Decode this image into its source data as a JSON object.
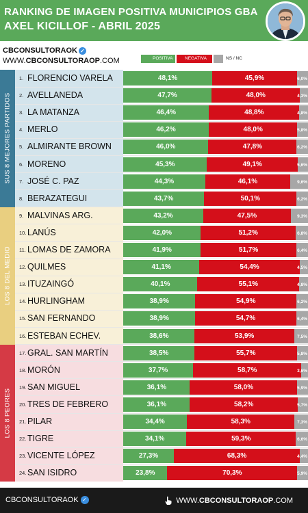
{
  "header": {
    "title_line1": "RANKING DE IMAGEN POSITIVA MUNICIPIOS GBA",
    "title_line2": "AXEL KICILLOF - ABRIL 2025"
  },
  "brand": {
    "handle": "CBCONSULTORAOK",
    "site_prefix": "WWW.",
    "site_main": "CBCONSULTORAOP",
    "site_suffix": ".COM"
  },
  "footer": {
    "handle": "CBCONSULTORAOK",
    "site_prefix": "WWW.",
    "site_main": "CBCONSULTORAOP",
    "site_suffix": ".COM"
  },
  "colors": {
    "positive": "#5aa95a",
    "negative": "#d40f1a",
    "nsnc": "#a7a7a7",
    "group_top": "#3b7a96",
    "group_mid": "#e9cf80",
    "group_low": "#d53a45",
    "bg_top": "#d3e4ec",
    "bg_mid": "#f8f0d8",
    "bg_low": "#f7dde0"
  },
  "chart_data": {
    "type": "bar",
    "stacked": true,
    "orientation": "horizontal",
    "legend": [
      "POSITIVA",
      "NEGATIVA",
      "NS / NC"
    ],
    "groups": [
      {
        "label": "SUS 8 MEJORES PARTIDOS",
        "start": 0,
        "end": 8
      },
      {
        "label": "LOS 8 DEL MEDIO",
        "start": 8,
        "end": 16
      },
      {
        "label": "LOS 8 PEORES",
        "start": 16,
        "end": 24
      }
    ],
    "categories": [
      "FLORENCIO VARELA",
      "AVELLANEDA",
      "LA MATANZA",
      "MERLO",
      "ALMIRANTE BROWN",
      "MORENO",
      "JOSÉ C. PAZ",
      "BERAZATEGUI",
      "MALVINAS ARG.",
      "LANÚS",
      "LOMAS DE ZAMORA",
      "QUILMES",
      "ITUZAINGÓ",
      "HURLINGHAM",
      "SAN FERNANDO",
      "ESTEBAN ECHEV.",
      "GRAL. SAN MARTÍN",
      "MORÓN",
      "SAN MIGUEL",
      "TRES DE FEBRERO",
      "PILAR",
      "TIGRE",
      "VICENTE LÓPEZ",
      "SAN ISIDRO"
    ],
    "series": [
      {
        "name": "POSITIVA",
        "values": [
          48.1,
          47.7,
          46.4,
          46.2,
          46.0,
          45.3,
          44.3,
          43.7,
          43.2,
          42.0,
          41.9,
          41.1,
          40.1,
          38.9,
          38.9,
          38.6,
          38.5,
          37.7,
          36.1,
          36.1,
          34.4,
          34.1,
          27.3,
          23.8
        ],
        "labels": [
          "48,1%",
          "47,7%",
          "46,4%",
          "46,2%",
          "46,0%",
          "45,3%",
          "44,3%",
          "43,7%",
          "43,2%",
          "42,0%",
          "41,9%",
          "41,1%",
          "40,1%",
          "38,9%",
          "38,9%",
          "38,6%",
          "38,5%",
          "37,7%",
          "36,1%",
          "36,1%",
          "34,4%",
          "34,1%",
          "27,3%",
          "23,8%"
        ]
      },
      {
        "name": "NEGATIVA",
        "values": [
          45.9,
          48.0,
          48.8,
          48.0,
          47.8,
          49.1,
          46.1,
          50.1,
          47.5,
          51.2,
          51.7,
          54.4,
          55.1,
          54.9,
          54.7,
          53.9,
          55.7,
          58.7,
          58.0,
          58.2,
          58.3,
          59.3,
          68.3,
          70.3
        ],
        "labels": [
          "45,9%",
          "48,0%",
          "48,8%",
          "48,0%",
          "47,8%",
          "49,1%",
          "46,1%",
          "50,1%",
          "47,5%",
          "51,2%",
          "51,7%",
          "54,4%",
          "55,1%",
          "54,9%",
          "54,7%",
          "53,9%",
          "55,7%",
          "58,7%",
          "58,0%",
          "58,2%",
          "58,3%",
          "59,3%",
          "68,3%",
          "70,3%"
        ]
      },
      {
        "name": "NS / NC",
        "values": [
          6.0,
          4.3,
          4.8,
          5.8,
          6.2,
          5.6,
          9.6,
          6.2,
          9.3,
          6.8,
          6.4,
          4.5,
          4.8,
          6.2,
          6.4,
          7.5,
          5.8,
          3.6,
          5.9,
          5.7,
          7.3,
          6.6,
          4.4,
          5.9
        ],
        "labels": [
          "6,0%",
          "4,3%",
          "4,8%",
          "5,8%",
          "6,2%",
          "5,6%",
          "9,6%",
          "6,2%",
          "9,3%",
          "6,8%",
          "6,4%",
          "4,5%",
          "4,8%",
          "6,2%",
          "6,4%",
          "7,5%",
          "5,8%",
          "3,6%",
          "5,9%",
          "5,7%",
          "7,3%",
          "6,6%",
          "4,4%",
          "5,9%"
        ]
      }
    ]
  }
}
